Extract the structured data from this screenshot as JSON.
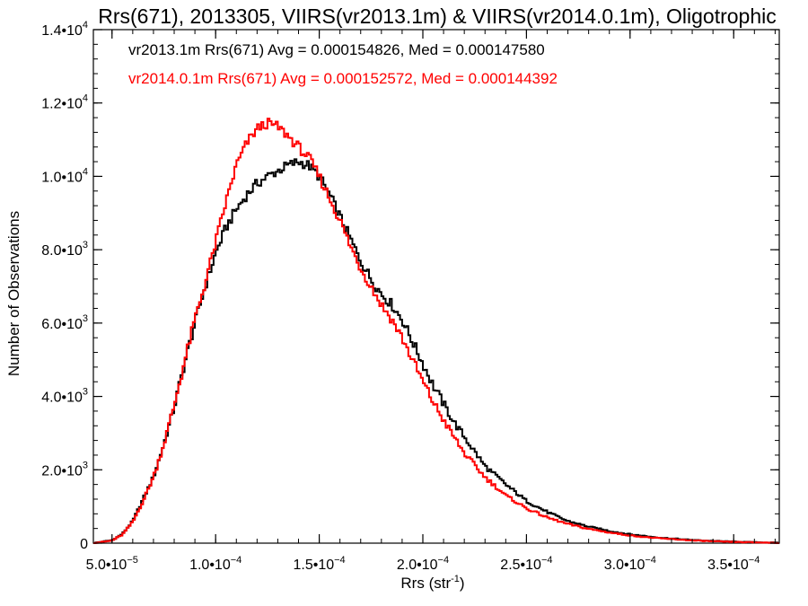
{
  "chart_data": {
    "type": "line",
    "title": "Rrs(671), 2013305, VIIRS(vr2013.1m) & VIIRS(vr2014.0.1m), Oligotrophic",
    "xlabel": "Rrs (str",
    "xlabel_sup": "-1",
    "xlabel_close": ")",
    "ylabel": "Number of Observations",
    "xlim": [
      4.1e-05,
      0.000372
    ],
    "ylim": [
      0,
      14000
    ],
    "xticks": [
      {
        "value": 5e-05,
        "mant": "5.0•10",
        "exp": "−5"
      },
      {
        "value": 0.0001,
        "mant": "1.0•10",
        "exp": "−4"
      },
      {
        "value": 0.00015,
        "mant": "1.5•10",
        "exp": "−4"
      },
      {
        "value": 0.0002,
        "mant": "2.0•10",
        "exp": "−4"
      },
      {
        "value": 0.00025,
        "mant": "2.5•10",
        "exp": "−4"
      },
      {
        "value": 0.0003,
        "mant": "3.0•10",
        "exp": "−4"
      },
      {
        "value": 0.00035,
        "mant": "3.5•10",
        "exp": "−4"
      }
    ],
    "yticks": [
      {
        "value": 0,
        "mant": "0",
        "exp": ""
      },
      {
        "value": 2000,
        "mant": "2.0•10",
        "exp": "3"
      },
      {
        "value": 4000,
        "mant": "4.0•10",
        "exp": "3"
      },
      {
        "value": 6000,
        "mant": "6.0•10",
        "exp": "3"
      },
      {
        "value": 8000,
        "mant": "8.0•10",
        "exp": "3"
      },
      {
        "value": 10000,
        "mant": "1.0•10",
        "exp": "4"
      },
      {
        "value": 12000,
        "mant": "1.2•10",
        "exp": "4"
      },
      {
        "value": 14000,
        "mant": "1.4•10",
        "exp": "4"
      }
    ],
    "grid": false,
    "legend_position": "top-left",
    "series": [
      {
        "name": "vr2013.1m Rrs(671)",
        "label": "vr2013.1m Rrs(671) Avg = 0.000154826, Med = 0.000147580",
        "color": "#000000",
        "step": "histogram",
        "x": [
          4.1e-05,
          5e-05,
          5.5e-05,
          6e-05,
          6.5e-05,
          7e-05,
          7.5e-05,
          8e-05,
          8.5e-05,
          9e-05,
          9.5e-05,
          0.0001,
          0.000105,
          0.00011,
          0.000115,
          0.00012,
          0.000125,
          0.00013,
          0.000135,
          0.00014,
          0.000145,
          0.00015,
          0.000155,
          0.00016,
          0.000165,
          0.00017,
          0.000175,
          0.00018,
          0.000185,
          0.00019,
          0.000195,
          0.0002,
          0.000205,
          0.00021,
          0.000215,
          0.00022,
          0.00023,
          0.00024,
          0.00025,
          0.00026,
          0.00027,
          0.00028,
          0.00029,
          0.0003,
          0.00031,
          0.00032,
          0.00033,
          0.00034,
          0.00035,
          0.00036,
          0.000372
        ],
        "y": [
          0,
          80,
          250,
          600,
          1200,
          1800,
          2700,
          3700,
          4900,
          6000,
          7000,
          7900,
          8600,
          9100,
          9500,
          9800,
          10000,
          10150,
          10300,
          10400,
          10300,
          10000,
          9500,
          8900,
          8300,
          7700,
          7200,
          6800,
          6500,
          6100,
          5500,
          4900,
          4300,
          3800,
          3300,
          2900,
          2100,
          1600,
          1150,
          850,
          600,
          450,
          330,
          240,
          175,
          125,
          85,
          60,
          40,
          25,
          10
        ]
      },
      {
        "name": "vr2014.0.1m Rrs(671)",
        "label": "vr2014.0.1m Rrs(671) Avg = 0.000152572, Med = 0.000144392",
        "color": "#ff0000",
        "step": "histogram",
        "x": [
          4.1e-05,
          5e-05,
          5.5e-05,
          6e-05,
          6.5e-05,
          7e-05,
          7.5e-05,
          8e-05,
          8.5e-05,
          9e-05,
          9.5e-05,
          0.0001,
          0.000105,
          0.00011,
          0.000115,
          0.00012,
          0.000125,
          0.00013,
          0.000135,
          0.00014,
          0.000145,
          0.00015,
          0.000155,
          0.00016,
          0.000165,
          0.00017,
          0.000175,
          0.00018,
          0.000185,
          0.00019,
          0.000195,
          0.0002,
          0.000205,
          0.00021,
          0.000215,
          0.00022,
          0.00023,
          0.00024,
          0.00025,
          0.00026,
          0.00027,
          0.00028,
          0.00029,
          0.0003,
          0.00031,
          0.00032,
          0.00033,
          0.00034,
          0.00035,
          0.00036,
          0.000372
        ],
        "y": [
          0,
          70,
          230,
          580,
          1150,
          1800,
          2700,
          3750,
          4950,
          6100,
          7100,
          8200,
          9300,
          10300,
          10900,
          11300,
          11450,
          11350,
          11100,
          10800,
          10500,
          10000,
          9400,
          8800,
          8100,
          7500,
          7000,
          6500,
          6100,
          5600,
          5000,
          4400,
          3850,
          3350,
          2900,
          2450,
          1800,
          1300,
          950,
          700,
          520,
          390,
          290,
          210,
          150,
          110,
          75,
          50,
          32,
          20,
          8
        ]
      }
    ]
  }
}
